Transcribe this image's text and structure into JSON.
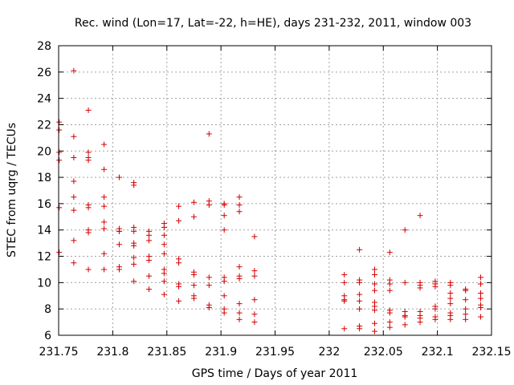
{
  "chart_data": {
    "type": "scatter",
    "title": "Rec. wind (Lon=17, Lat=-22, h=HE), days 231-232, 2011, window 003",
    "xlabel": "GPS time / Days of year 2011",
    "ylabel": "STEC from uqrg / TECUs",
    "xlim": [
      231.75,
      232.15
    ],
    "ylim": [
      6,
      28
    ],
    "x_ticks": [
      231.75,
      231.8,
      231.85,
      231.9,
      231.95,
      232,
      232.05,
      232.1,
      232.15
    ],
    "x_tick_labels": [
      "231.75",
      "231.8",
      "231.85",
      "231.9",
      "231.95",
      "232",
      "232.05",
      "232.1",
      "232.15"
    ],
    "y_ticks": [
      6,
      8,
      10,
      12,
      14,
      16,
      18,
      20,
      22,
      24,
      26,
      28
    ],
    "y_tick_labels": [
      "6",
      "8",
      "10",
      "12",
      "14",
      "16",
      "18",
      "20",
      "22",
      "24",
      "26",
      "28"
    ],
    "grid": true,
    "marker": "plus",
    "color": "#d40000",
    "series": [
      {
        "points": [
          [
            231.7505,
            22.2
          ],
          [
            231.7505,
            21.6
          ],
          [
            231.7505,
            19.9
          ],
          [
            231.7505,
            19.3
          ],
          [
            231.7505,
            15.7
          ],
          [
            231.7505,
            12.3
          ],
          [
            231.764,
            26.1
          ],
          [
            231.764,
            21.1
          ],
          [
            231.764,
            19.5
          ],
          [
            231.764,
            17.7
          ],
          [
            231.764,
            16.5
          ],
          [
            231.764,
            15.5
          ],
          [
            231.764,
            13.2
          ],
          [
            231.764,
            11.5
          ],
          [
            231.7775,
            23.1
          ],
          [
            231.7775,
            19.9
          ],
          [
            231.7775,
            19.5
          ],
          [
            231.7775,
            19.3
          ],
          [
            231.7775,
            15.9
          ],
          [
            231.7775,
            15.7
          ],
          [
            231.7775,
            14.0
          ],
          [
            231.7775,
            13.8
          ],
          [
            231.7775,
            11.0
          ],
          [
            231.792,
            20.5
          ],
          [
            231.792,
            18.6
          ],
          [
            231.792,
            16.5
          ],
          [
            231.792,
            15.8
          ],
          [
            231.792,
            14.6
          ],
          [
            231.792,
            14.1
          ],
          [
            231.792,
            12.2
          ],
          [
            231.792,
            11.0
          ],
          [
            231.806,
            18.0
          ],
          [
            231.806,
            14.1
          ],
          [
            231.806,
            13.9
          ],
          [
            231.806,
            13.9
          ],
          [
            231.806,
            12.9
          ],
          [
            231.806,
            11.2
          ],
          [
            231.806,
            11.0
          ],
          [
            231.8195,
            17.6
          ],
          [
            231.8195,
            17.4
          ],
          [
            231.8195,
            14.2
          ],
          [
            231.8195,
            13.9
          ],
          [
            231.8195,
            13.0
          ],
          [
            231.8195,
            12.8
          ],
          [
            231.8195,
            11.9
          ],
          [
            231.8195,
            11.4
          ],
          [
            231.8195,
            10.1
          ],
          [
            231.8335,
            13.9
          ],
          [
            231.8335,
            13.6
          ],
          [
            231.8335,
            13.2
          ],
          [
            231.8335,
            12.0
          ],
          [
            231.8335,
            11.7
          ],
          [
            231.8335,
            10.5
          ],
          [
            231.8335,
            9.5
          ],
          [
            231.8475,
            14.5
          ],
          [
            231.8475,
            14.2
          ],
          [
            231.8475,
            13.6
          ],
          [
            231.8475,
            12.9
          ],
          [
            231.8475,
            12.2
          ],
          [
            231.8475,
            11.0
          ],
          [
            231.8475,
            10.7
          ],
          [
            231.8475,
            10.1
          ],
          [
            231.8475,
            9.1
          ],
          [
            231.861,
            15.8
          ],
          [
            231.861,
            14.7
          ],
          [
            231.861,
            11.8
          ],
          [
            231.861,
            11.5
          ],
          [
            231.861,
            9.9
          ],
          [
            231.861,
            9.7
          ],
          [
            231.861,
            8.6
          ],
          [
            231.875,
            16.1
          ],
          [
            231.875,
            15.0
          ],
          [
            231.875,
            10.8
          ],
          [
            231.875,
            10.6
          ],
          [
            231.875,
            9.8
          ],
          [
            231.875,
            9.0
          ],
          [
            231.875,
            8.8
          ],
          [
            231.889,
            21.3
          ],
          [
            231.889,
            16.2
          ],
          [
            231.889,
            15.9
          ],
          [
            231.889,
            10.4
          ],
          [
            231.889,
            9.8
          ],
          [
            231.889,
            8.3
          ],
          [
            231.889,
            8.1
          ],
          [
            231.903,
            16.0
          ],
          [
            231.903,
            15.9
          ],
          [
            231.903,
            15.1
          ],
          [
            231.903,
            14.0
          ],
          [
            231.903,
            10.4
          ],
          [
            231.903,
            10.1
          ],
          [
            231.903,
            9.0
          ],
          [
            231.903,
            8.0
          ],
          [
            231.903,
            7.7
          ],
          [
            231.917,
            16.5
          ],
          [
            231.917,
            15.9
          ],
          [
            231.917,
            15.4
          ],
          [
            231.917,
            11.2
          ],
          [
            231.917,
            10.5
          ],
          [
            231.917,
            10.3
          ],
          [
            231.917,
            8.4
          ],
          [
            231.917,
            7.7
          ],
          [
            231.917,
            7.2
          ],
          [
            231.931,
            13.5
          ],
          [
            231.931,
            10.9
          ],
          [
            231.931,
            10.5
          ],
          [
            231.931,
            8.7
          ],
          [
            231.931,
            7.6
          ],
          [
            231.931,
            7.0
          ],
          [
            232.014,
            10.6
          ],
          [
            232.014,
            10.0
          ],
          [
            232.014,
            9.0
          ],
          [
            232.014,
            8.7
          ],
          [
            232.014,
            8.6
          ],
          [
            232.014,
            6.5
          ],
          [
            232.028,
            12.5
          ],
          [
            232.028,
            10.2
          ],
          [
            232.028,
            10.0
          ],
          [
            232.028,
            9.1
          ],
          [
            232.028,
            8.6
          ],
          [
            232.028,
            8.0
          ],
          [
            232.028,
            6.7
          ],
          [
            232.028,
            6.5
          ],
          [
            232.042,
            11.0
          ],
          [
            232.042,
            10.6
          ],
          [
            232.042,
            9.9
          ],
          [
            232.042,
            9.4
          ],
          [
            232.042,
            8.5
          ],
          [
            232.042,
            8.2
          ],
          [
            232.042,
            7.9
          ],
          [
            232.042,
            6.9
          ],
          [
            232.042,
            6.3
          ],
          [
            232.056,
            12.3
          ],
          [
            232.056,
            10.2
          ],
          [
            232.056,
            9.9
          ],
          [
            232.056,
            9.4
          ],
          [
            232.056,
            7.9
          ],
          [
            232.056,
            7.7
          ],
          [
            232.056,
            7.0
          ],
          [
            232.056,
            6.6
          ],
          [
            232.07,
            14.0
          ],
          [
            232.07,
            10.0
          ],
          [
            232.07,
            7.8
          ],
          [
            232.07,
            7.5
          ],
          [
            232.07,
            7.4
          ],
          [
            232.07,
            6.8
          ],
          [
            232.084,
            15.1
          ],
          [
            232.084,
            10.0
          ],
          [
            232.084,
            9.8
          ],
          [
            232.084,
            9.6
          ],
          [
            232.084,
            7.8
          ],
          [
            232.084,
            7.5
          ],
          [
            232.084,
            7.3
          ],
          [
            232.084,
            7.0
          ],
          [
            232.098,
            10.1
          ],
          [
            232.098,
            9.9
          ],
          [
            232.098,
            9.7
          ],
          [
            232.098,
            8.2
          ],
          [
            232.098,
            8.0
          ],
          [
            232.098,
            7.4
          ],
          [
            232.098,
            7.2
          ],
          [
            232.112,
            10.0
          ],
          [
            232.112,
            9.8
          ],
          [
            232.112,
            9.2
          ],
          [
            232.112,
            8.8
          ],
          [
            232.112,
            8.4
          ],
          [
            232.112,
            7.7
          ],
          [
            232.112,
            7.5
          ],
          [
            232.112,
            7.2
          ],
          [
            232.126,
            9.5
          ],
          [
            232.126,
            9.4
          ],
          [
            232.126,
            8.7
          ],
          [
            232.126,
            8.0
          ],
          [
            232.126,
            7.6
          ],
          [
            232.126,
            7.2
          ],
          [
            232.14,
            10.4
          ],
          [
            232.14,
            9.9
          ],
          [
            232.14,
            9.2
          ],
          [
            232.14,
            8.8
          ],
          [
            232.14,
            8.3
          ],
          [
            232.14,
            8.1
          ],
          [
            232.14,
            7.4
          ]
        ]
      }
    ]
  }
}
